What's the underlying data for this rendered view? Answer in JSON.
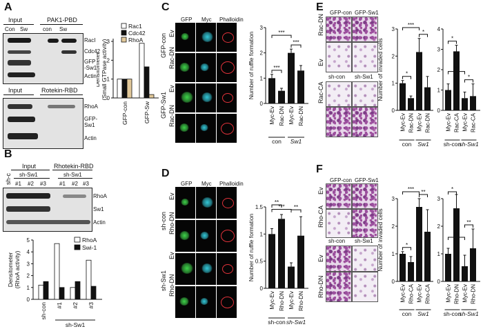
{
  "panels": {
    "A": {
      "letter": "A",
      "blot1": {
        "header_left": "Input",
        "header_right": "PAK1-PBD",
        "cols": [
          "Con",
          "Sw",
          "con",
          "Sw"
        ],
        "rows": [
          "RacI",
          "Cdc42",
          "GFP\n-Sw1",
          "Actin"
        ]
      },
      "blot2": {
        "header_left": "Input",
        "header_right": "Rotekin-RBD",
        "rows": [
          "RhoA",
          "GFP-\nSw1",
          "Actin"
        ]
      }
    },
    "B": {
      "letter": "B",
      "blot": {
        "header_left": "Input",
        "header_right": "Rhotekin-RBD",
        "sub_c": "sh-c",
        "sub_sw": "sh-Sw1",
        "cols": [
          "#1",
          "#2",
          "#3",
          "#1",
          "#2",
          "#3"
        ],
        "rows": [
          "RhoA",
          "Sw1",
          "Actin"
        ]
      }
    },
    "C": {
      "letter": "C",
      "cols": [
        "GFP",
        "Myc",
        "Phalloidin"
      ],
      "group1": "GFP-con",
      "group2": "GFP-Sw1",
      "rows": [
        "Ev",
        "Rac-DN",
        "Ev",
        "Rac-DN"
      ]
    },
    "D": {
      "letter": "D",
      "cols": [
        "GFP",
        "Myc",
        "Phalloidin"
      ],
      "group1": "sh-con",
      "group2": "sh-Sw1",
      "rows": [
        "Ev",
        "Rho-DN",
        "Ev",
        "Rho-DN"
      ]
    },
    "E": {
      "letter": "E",
      "col1": "GFP-con",
      "col2": "GFP-Sw1",
      "mid": [
        "sh-con",
        "sh-Sw1"
      ],
      "rows": [
        "Rac-DN",
        "Ev",
        "Rac-CA"
      ]
    },
    "F": {
      "letter": "F",
      "col1": "GFP-con",
      "col2": "GFP-Sw1",
      "mid": [
        "sh-con",
        "sh-Sw1"
      ],
      "rows": [
        "Ev",
        "Rho-CA",
        "Ev",
        "Rho-DN"
      ]
    }
  },
  "colors": {
    "white": "#ffffff",
    "black": "#111111",
    "tan": "#e2c99a"
  },
  "chart_data": [
    {
      "id": "A-bar",
      "type": "bar",
      "ylabel": "Densitometer\n(Small GTPase activity)",
      "categories": [
        "GFP-con",
        "GFP-Sw"
      ],
      "ylim": [
        0,
        3.0
      ],
      "yticks": [
        0,
        1,
        2,
        3
      ],
      "series": [
        {
          "name": "Rac1",
          "color": "#ffffff",
          "values": [
            1.0,
            2.9
          ]
        },
        {
          "name": "Cdc42",
          "color": "#111111",
          "values": [
            1.0,
            1.65
          ]
        },
        {
          "name": "RhoA",
          "color": "#e2c99a",
          "values": [
            1.0,
            0.18
          ]
        }
      ]
    },
    {
      "id": "B-bar",
      "type": "bar",
      "ylabel": "Densitometer\n(RhoA activity)",
      "categories": [
        "sh-con",
        "#1",
        "#2",
        "#3"
      ],
      "group_label": "sh-Sw1",
      "ylim": [
        0,
        5
      ],
      "yticks": [
        0,
        1,
        2,
        3,
        4,
        5
      ],
      "series": [
        {
          "name": "RhoA",
          "color": "#ffffff",
          "values": [
            1.2,
            4.7,
            1.0,
            3.3
          ]
        },
        {
          "name": "Swi-1",
          "color": "#111111",
          "values": [
            1.5,
            1.0,
            1.5,
            1.1
          ]
        }
      ]
    },
    {
      "id": "C-bar",
      "type": "bar",
      "ylabel": "Number of ruffle formation",
      "categories": [
        "Myc-Ev",
        "Rac-DN",
        "Myc-Ev",
        "Rac-DN"
      ],
      "groups": [
        "con",
        "Sw1"
      ],
      "ylim": [
        0,
        3
      ],
      "yticks": [
        0,
        1,
        2,
        3
      ],
      "values": [
        1.0,
        0.5,
        2.0,
        1.3
      ],
      "errors": [
        0.15,
        0.1,
        0.15,
        0.2
      ],
      "significance": [
        "***",
        "***",
        "***"
      ]
    },
    {
      "id": "D-bar",
      "type": "bar",
      "ylabel": "Number of ruffle formation",
      "categories": [
        "Myc-Ev",
        "Rho-DN",
        "Myc-Ev",
        "Rho-DN"
      ],
      "groups": [
        "sh-con",
        "sh-Sw1"
      ],
      "ylim": [
        0,
        1.5
      ],
      "yticks": [
        0,
        0.5,
        1,
        1.5
      ],
      "values": [
        1.0,
        1.28,
        0.4,
        0.97
      ],
      "errors": [
        0.1,
        0.08,
        0.07,
        0.35
      ],
      "significance": [
        "**",
        "**",
        "***"
      ]
    },
    {
      "id": "E-bar1",
      "type": "bar",
      "ylabel": "Number of invaded cells",
      "categories": [
        "Myc-Ev",
        "Rac-DN",
        "Myc-Ev",
        "Rac-DN"
      ],
      "groups": [
        "con",
        "Sw1"
      ],
      "ylim": [
        0,
        3
      ],
      "yticks": [
        0,
        1,
        2,
        3
      ],
      "values": [
        1.0,
        0.45,
        2.15,
        0.85
      ],
      "errors": [
        0.1,
        0.08,
        0.5,
        0.4
      ],
      "significance": [
        "*",
        "*",
        "***"
      ]
    },
    {
      "id": "E-bar2",
      "type": "bar",
      "categories": [
        "Myc-Ev",
        "Rac-CA",
        "Myc-Ev",
        "Rac-CA"
      ],
      "groups": [
        "sh-con",
        "sh-Sw1"
      ],
      "ylim": [
        0,
        4
      ],
      "yticks": [
        0,
        1,
        2,
        3,
        4
      ],
      "values": [
        1.0,
        2.9,
        0.6,
        0.7
      ],
      "errors": [
        0.3,
        0.3,
        0.3,
        0.6
      ],
      "significance": [
        "*",
        "*",
        "***"
      ]
    },
    {
      "id": "F-bar1",
      "type": "bar",
      "ylabel": "Number of invaded cells",
      "categories": [
        "Myc-Ev",
        "Rho-CA",
        "Myc-Ev",
        "Rho-CA"
      ],
      "groups": [
        "con",
        "Sw1"
      ],
      "ylim": [
        0,
        3
      ],
      "yticks": [
        0,
        1,
        2,
        3
      ],
      "values": [
        1.0,
        0.7,
        2.7,
        1.8
      ],
      "errors": [
        0.08,
        0.2,
        0.3,
        0.8
      ],
      "significance": [
        "*",
        "**",
        "***"
      ]
    },
    {
      "id": "F-bar2",
      "type": "bar",
      "categories": [
        "Myc-Ev",
        "Rho-DN",
        "Myc-Ev",
        "Rho-DN"
      ],
      "groups": [
        "sh-con",
        "sh-Sw1"
      ],
      "ylim": [
        0,
        3
      ],
      "yticks": [
        0,
        1,
        2,
        3
      ],
      "values": [
        1.0,
        2.65,
        0.55,
        1.2
      ],
      "errors": [
        0.2,
        0.5,
        0.4,
        0.7
      ],
      "significance": [
        "*",
        "**",
        "***"
      ]
    }
  ]
}
